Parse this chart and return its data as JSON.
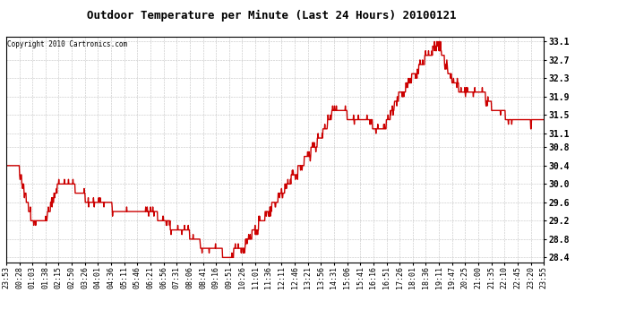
{
  "title": "Outdoor Temperature per Minute (Last 24 Hours) 20100121",
  "copyright_text": "Copyright 2010 Cartronics.com",
  "line_color": "#cc0000",
  "background_color": "#ffffff",
  "grid_color": "#bbbbbb",
  "yticks": [
    28.4,
    28.8,
    29.2,
    29.6,
    30.0,
    30.4,
    30.8,
    31.1,
    31.5,
    31.9,
    32.3,
    32.7,
    33.1
  ],
  "ymin": 28.3,
  "ymax": 33.2,
  "xtick_labels": [
    "23:53",
    "00:28",
    "01:03",
    "01:38",
    "02:15",
    "02:50",
    "03:26",
    "04:01",
    "04:36",
    "05:11",
    "05:46",
    "06:21",
    "06:56",
    "07:31",
    "08:06",
    "08:41",
    "09:16",
    "09:51",
    "10:26",
    "11:01",
    "11:36",
    "12:11",
    "12:46",
    "13:21",
    "13:56",
    "14:31",
    "15:06",
    "15:41",
    "16:16",
    "16:51",
    "17:26",
    "18:01",
    "18:36",
    "19:11",
    "19:47",
    "20:25",
    "21:00",
    "21:35",
    "22:10",
    "22:45",
    "23:20",
    "23:55"
  ],
  "line_width": 1.0,
  "title_fontsize": 9,
  "tick_fontsize": 6,
  "ytick_fontsize": 7
}
